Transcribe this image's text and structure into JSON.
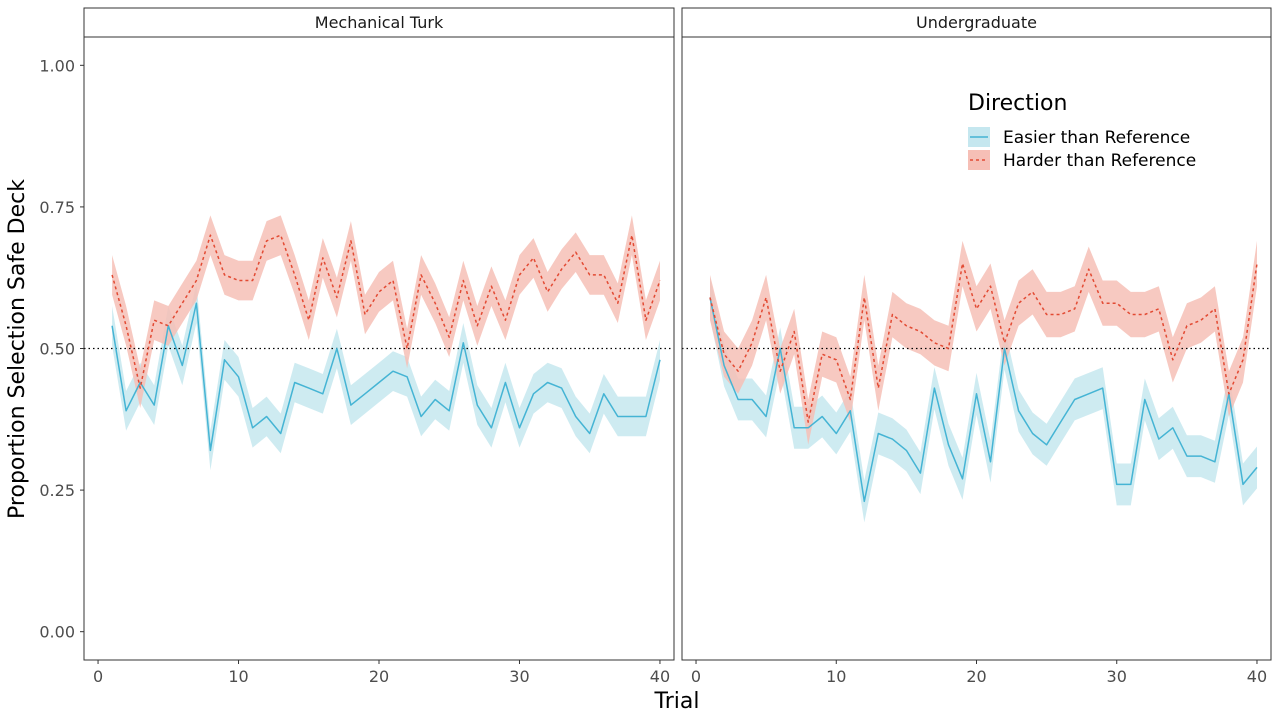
{
  "chart_data": {
    "type": "line",
    "title": "",
    "xlabel": "Trial",
    "ylabel": "Proportion Selection Safe Deck",
    "xlim": [
      -1,
      41
    ],
    "ylim": [
      -0.05,
      1.05
    ],
    "xticks": [
      0,
      10,
      20,
      30,
      40
    ],
    "yticks": [
      0.0,
      0.25,
      0.5,
      0.75,
      1.0
    ],
    "ytick_labels": [
      "0.00",
      "0.25",
      "0.50",
      "0.75",
      "1.00"
    ],
    "reference_line": {
      "y": 0.5,
      "style": "dotted"
    },
    "grid": false,
    "legend": {
      "title": "Direction",
      "placement": "top-right of Undergraduate panel",
      "entries": [
        {
          "label": "Easier than Reference",
          "color": "#45B4D4",
          "fill": "#C5E7EF",
          "dash": "solid"
        },
        {
          "label": "Harder than Reference",
          "color": "#E24A33",
          "fill": "#F6BFB6",
          "dash": "dotted"
        }
      ]
    },
    "panels": [
      {
        "name": "Mechanical Turk",
        "x": [
          1,
          2,
          3,
          4,
          5,
          6,
          7,
          8,
          9,
          10,
          11,
          12,
          13,
          14,
          15,
          16,
          17,
          18,
          19,
          20,
          21,
          22,
          23,
          24,
          25,
          26,
          27,
          28,
          29,
          30,
          31,
          32,
          33,
          34,
          35,
          36,
          37,
          38,
          39,
          40
        ],
        "series": [
          {
            "name": "Easier than Reference",
            "values": [
              0.54,
              0.39,
              0.44,
              0.4,
              0.54,
              0.47,
              0.58,
              0.32,
              0.48,
              0.45,
              0.36,
              0.38,
              0.35,
              0.44,
              0.43,
              0.42,
              0.5,
              0.4,
              0.42,
              0.44,
              0.46,
              0.45,
              0.38,
              0.41,
              0.39,
              0.51,
              0.4,
              0.36,
              0.44,
              0.36,
              0.42,
              0.44,
              0.43,
              0.38,
              0.35,
              0.42,
              0.38,
              0.38,
              0.38,
              0.48
            ],
            "ci": 0.035
          },
          {
            "name": "Harder than Reference",
            "values": [
              0.63,
              0.54,
              0.43,
              0.55,
              0.54,
              0.58,
              0.62,
              0.7,
              0.63,
              0.62,
              0.62,
              0.69,
              0.7,
              0.63,
              0.55,
              0.66,
              0.59,
              0.69,
              0.56,
              0.6,
              0.62,
              0.5,
              0.63,
              0.58,
              0.52,
              0.62,
              0.54,
              0.61,
              0.55,
              0.63,
              0.66,
              0.6,
              0.64,
              0.67,
              0.63,
              0.63,
              0.58,
              0.7,
              0.55,
              0.62
            ],
            "ci": 0.035
          }
        ]
      },
      {
        "name": "Undergraduate",
        "x": [
          1,
          2,
          3,
          4,
          5,
          6,
          7,
          8,
          9,
          10,
          11,
          12,
          13,
          14,
          15,
          16,
          17,
          18,
          19,
          20,
          21,
          22,
          23,
          24,
          25,
          26,
          27,
          28,
          29,
          30,
          31,
          32,
          33,
          34,
          35,
          36,
          37,
          38,
          39,
          40
        ],
        "series": [
          {
            "name": "Easier than Reference",
            "values": [
              0.59,
              0.47,
              0.41,
              0.41,
              0.38,
              0.5,
              0.36,
              0.36,
              0.38,
              0.35,
              0.39,
              0.23,
              0.35,
              0.34,
              0.32,
              0.28,
              0.43,
              0.33,
              0.27,
              0.42,
              0.3,
              0.5,
              0.39,
              0.35,
              0.33,
              0.37,
              0.41,
              0.42,
              0.43,
              0.26,
              0.26,
              0.41,
              0.34,
              0.36,
              0.31,
              0.31,
              0.3,
              0.42,
              0.26,
              0.29
            ],
            "ci": 0.037
          },
          {
            "name": "Harder than Reference",
            "values": [
              0.59,
              0.49,
              0.46,
              0.51,
              0.59,
              0.46,
              0.53,
              0.37,
              0.49,
              0.48,
              0.41,
              0.59,
              0.43,
              0.56,
              0.54,
              0.53,
              0.51,
              0.5,
              0.65,
              0.57,
              0.61,
              0.51,
              0.58,
              0.6,
              0.56,
              0.56,
              0.57,
              0.64,
              0.58,
              0.58,
              0.56,
              0.56,
              0.57,
              0.48,
              0.54,
              0.55,
              0.57,
              0.42,
              0.48,
              0.65
            ],
            "ci": 0.04
          }
        ]
      }
    ]
  }
}
